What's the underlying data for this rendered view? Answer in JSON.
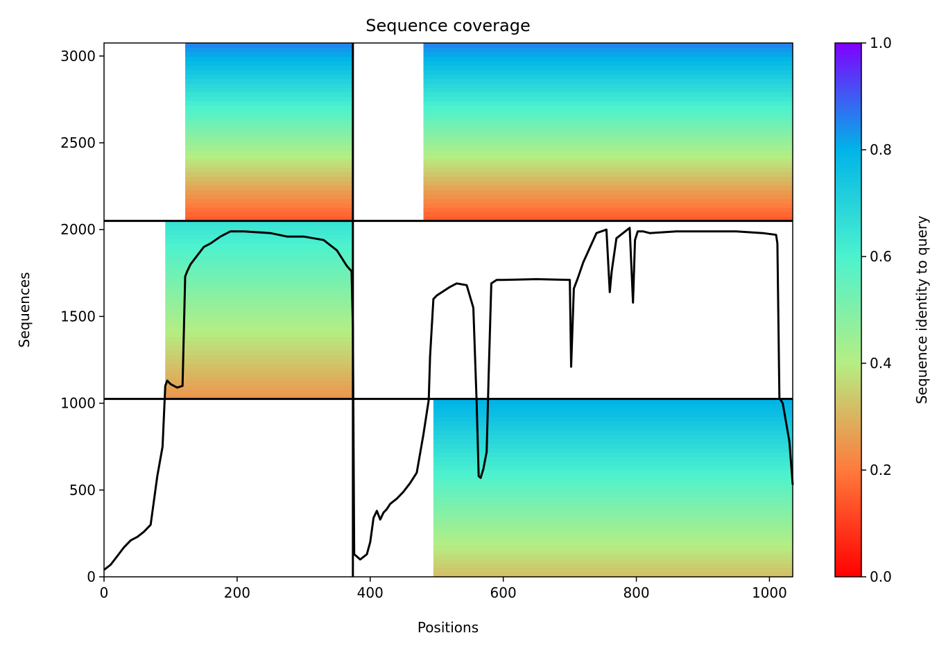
{
  "chart_data": {
    "type": "heatmap",
    "title": "Sequence coverage",
    "xlabel": "Positions",
    "ylabel": "Sequences",
    "xlim": [
      0,
      1035
    ],
    "ylim": [
      0,
      3075
    ],
    "xticks": [
      0,
      200,
      400,
      600,
      800,
      1000
    ],
    "yticks": [
      0,
      500,
      1000,
      1500,
      2000,
      2500,
      3000
    ],
    "colorbar": {
      "label": "Sequence identity to query",
      "range": [
        0,
        1
      ],
      "ticks": [
        "0.0",
        "0.2",
        "0.4",
        "0.6",
        "0.8",
        "1.0"
      ],
      "colormap": "rainbow_r",
      "colors": [
        "#ff0000",
        "#ff7a3c",
        "#b5ee83",
        "#4cf2ce",
        "#00b4e8",
        "#7f00ff"
      ]
    },
    "block_dividers": {
      "x": [
        374
      ],
      "y": [
        1025,
        2050
      ]
    },
    "blocks": [
      {
        "x": [
          0,
          374
        ],
        "y": [
          2050,
          3075
        ],
        "fill_start_x": 122,
        "identity_top": 0.85,
        "identity_bottom": 0.15
      },
      {
        "x": [
          374,
          1035
        ],
        "y": [
          2050,
          3075
        ],
        "fill_start_x": 480,
        "identity_top": 0.85,
        "identity_bottom": 0.15
      },
      {
        "x": [
          0,
          374
        ],
        "y": [
          1025,
          2050
        ],
        "fill_start_x": 92,
        "identity_top": 0.65,
        "identity_bottom": 0.25
      },
      {
        "x": [
          374,
          1035
        ],
        "y": [
          0,
          1025
        ],
        "fill_start_x": 495,
        "identity_top": 0.8,
        "identity_bottom": 0.32
      }
    ],
    "coverage_line": {
      "x": [
        0,
        10,
        20,
        30,
        40,
        50,
        60,
        70,
        80,
        88,
        92,
        95,
        100,
        110,
        118,
        122,
        125,
        130,
        140,
        150,
        160,
        175,
        190,
        210,
        250,
        275,
        300,
        330,
        350,
        365,
        372,
        374,
        376,
        385,
        395,
        400,
        405,
        410,
        415,
        420,
        425,
        430,
        440,
        450,
        460,
        470,
        480,
        488,
        490,
        495,
        500,
        520,
        530,
        545,
        555,
        560,
        563,
        566,
        570,
        575,
        578,
        582,
        590,
        600,
        650,
        700,
        702,
        706,
        712,
        720,
        740,
        755,
        760,
        763,
        770,
        790,
        795,
        798,
        802,
        810,
        820,
        860,
        900,
        950,
        990,
        1010,
        1012,
        1015,
        1020,
        1030,
        1035
      ],
      "y": [
        40,
        70,
        120,
        170,
        210,
        230,
        260,
        300,
        580,
        750,
        1100,
        1130,
        1110,
        1090,
        1100,
        1730,
        1760,
        1800,
        1850,
        1900,
        1920,
        1960,
        1990,
        1990,
        1980,
        1960,
        1960,
        1940,
        1880,
        1790,
        1760,
        1440,
        130,
        100,
        130,
        200,
        340,
        380,
        330,
        370,
        390,
        420,
        450,
        490,
        540,
        600,
        820,
        1020,
        1270,
        1600,
        1620,
        1670,
        1690,
        1680,
        1550,
        1000,
        580,
        570,
        620,
        720,
        1150,
        1690,
        1710,
        1710,
        1715,
        1710,
        1210,
        1660,
        1720,
        1810,
        1980,
        2000,
        1640,
        1760,
        1950,
        2010,
        1580,
        1940,
        1990,
        1990,
        1980,
        1990,
        1990,
        1990,
        1980,
        1970,
        1920,
        1030,
        1000,
        780,
        530
      ]
    }
  }
}
